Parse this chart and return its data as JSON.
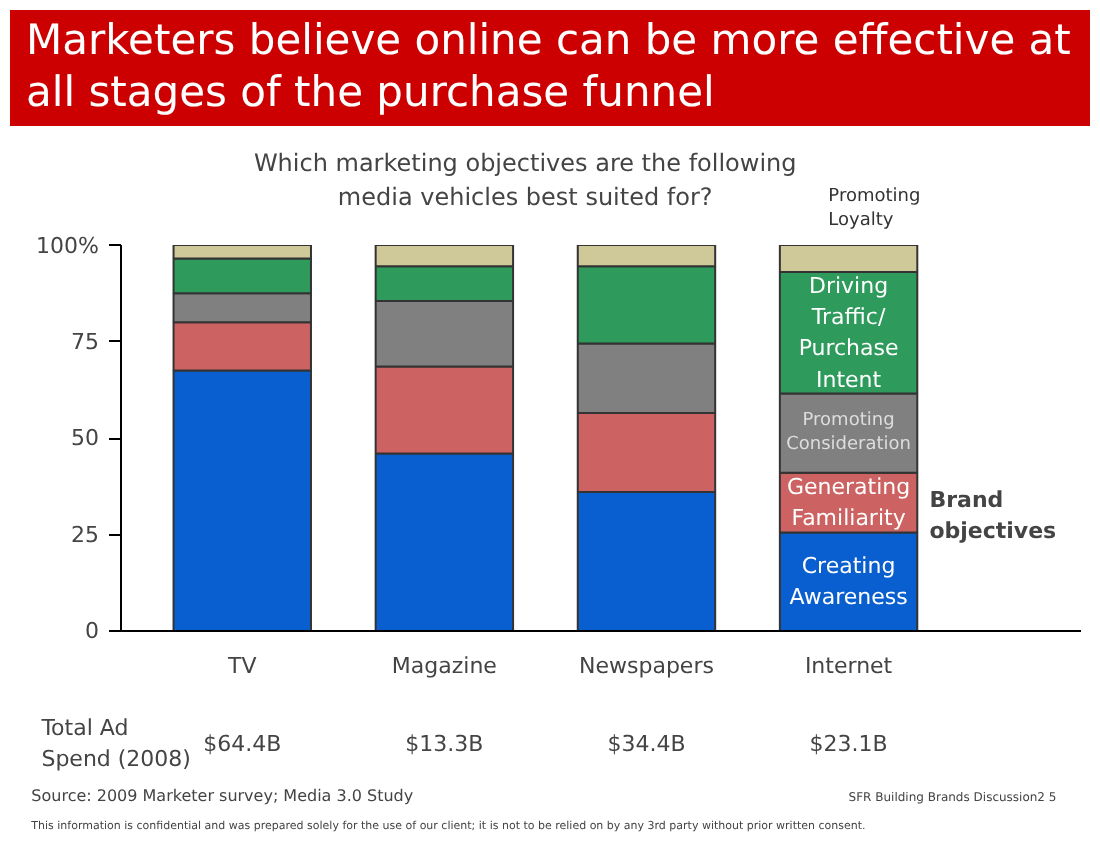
{
  "chart_data": {
    "type": "bar",
    "stacked": true,
    "title": "Marketers believe online can be more effective at all stages of the purchase funnel",
    "subtitle": "Which marketing objectives are the following media vehicles best suited for?",
    "categories": [
      "TV",
      "Magazine",
      "Newspapers",
      "Internet"
    ],
    "series": [
      {
        "name": "Creating Awareness",
        "color": "#0a5fd0",
        "values": [
          67.5,
          46,
          36,
          25.5
        ]
      },
      {
        "name": "Generating Familiarity",
        "color": "#cc6262",
        "values": [
          12.5,
          22.5,
          20.5,
          15.5
        ]
      },
      {
        "name": "Promoting Consideration",
        "color": "#808080",
        "values": [
          7.5,
          17,
          18,
          20.5
        ]
      },
      {
        "name": "Driving Traffic/ Purchase Intent",
        "color": "#2e9a5c",
        "values": [
          9,
          9,
          20,
          31.5
        ]
      },
      {
        "name": "Promoting Loyalty",
        "color": "#cfc99a",
        "values": [
          3.5,
          5.5,
          5.5,
          7
        ]
      }
    ],
    "ylim": [
      0,
      100
    ],
    "yticks": [
      0,
      25,
      50,
      75,
      {
        "value": 100,
        "label": "100%"
      }
    ],
    "grid": false,
    "legend": false,
    "annotations": [
      "Brand objectives",
      "Total Ad Spend (2008)",
      "$64.4B",
      "$13.3B",
      "$34.4B",
      "$23.1B",
      "Source: 2009 Marketer survey; Media 3.0 Study",
      "SFR  Building Brands Discussion2   5",
      "This information is confidential and was prepared solely for the use of our client; it is not to be relied on by any 3rd party without prior written consent."
    ]
  }
}
